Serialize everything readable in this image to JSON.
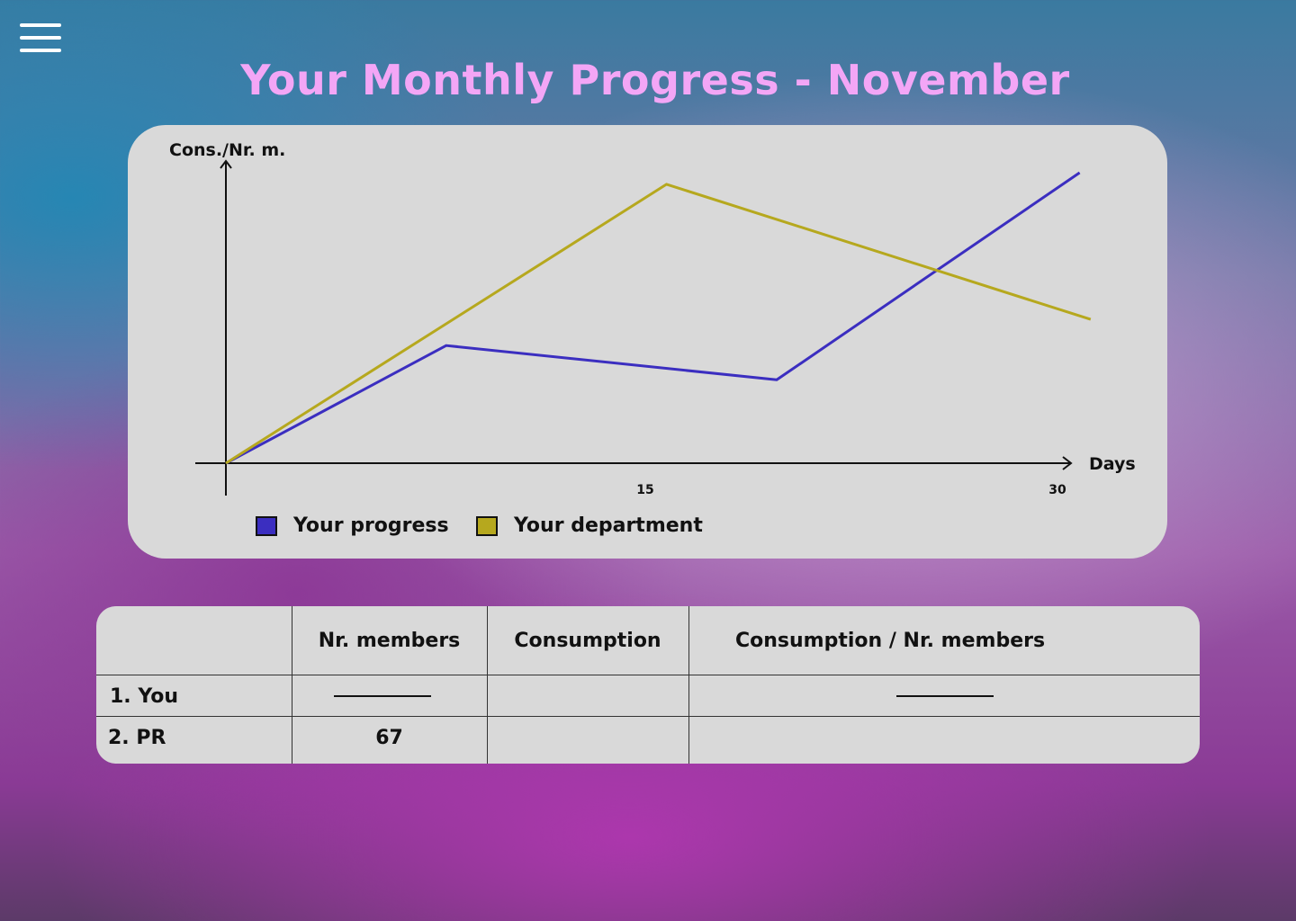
{
  "app": {
    "menu_icon": "hamburger-menu-icon",
    "title": "Your Monthly Progress - November"
  },
  "chart_data": {
    "type": "line",
    "title": "",
    "xlabel": "Days",
    "ylabel": "Cons./Nr. m.",
    "x_ticks": [
      "15",
      "30"
    ],
    "xlim": [
      0,
      30
    ],
    "ylim": [
      0,
      100
    ],
    "grid": false,
    "legend_position": "bottom-left",
    "series": [
      {
        "name": "Your progress",
        "color": "#3b2ec0",
        "points": [
          [
            0,
            0
          ],
          [
            8,
            40.5
          ],
          [
            20,
            28.7
          ],
          [
            31,
            100
          ]
        ]
      },
      {
        "name": "Your department",
        "color": "#b6a81e",
        "points": [
          [
            0,
            0
          ],
          [
            16,
            96
          ],
          [
            31.4,
            49.5
          ]
        ]
      }
    ]
  },
  "legend": {
    "items": [
      {
        "label": "Your progress",
        "color": "#3b2ec0"
      },
      {
        "label": "Your department",
        "color": "#b6a81e"
      }
    ]
  },
  "table": {
    "headers": [
      "",
      "Nr. members",
      "Consumption",
      "Consumption / Nr. members"
    ],
    "rows": [
      {
        "name": "1. You",
        "members": "",
        "consumption": "",
        "ratio": ""
      },
      {
        "name": "2. PR",
        "members": "67",
        "consumption": "",
        "ratio": ""
      }
    ]
  }
}
